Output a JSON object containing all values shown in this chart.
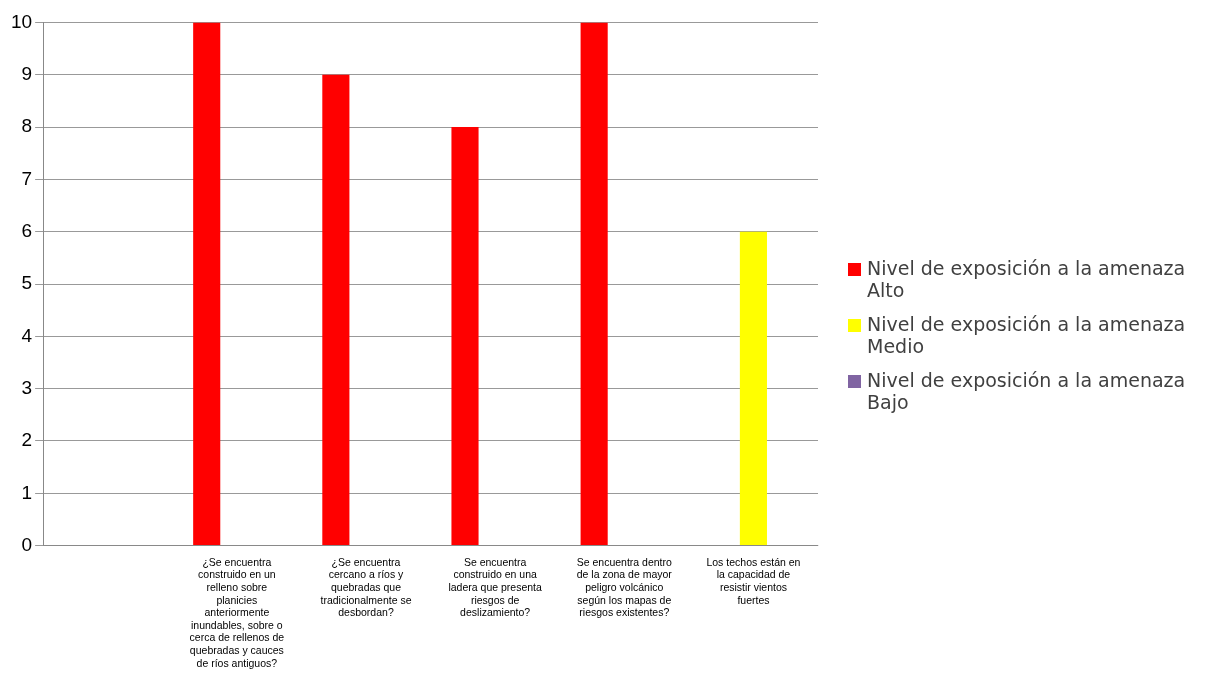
{
  "chart_data": {
    "type": "bar",
    "categories": [
      null,
      "¿Se encuentra construido en un relleno sobre planicies anteriormente inundables, sobre o cerca de rellenos de quebradas y cauces de ríos antiguos?",
      "¿Se encuentra cercano a ríos y quebradas que tradicionalmente se desbordan?",
      "Se encuentra construido en una ladera que presenta riesgos de deslizamiento?",
      "Se encuentra dentro de la zona de mayor peligro volcánico según los mapas de riesgos existentes?",
      "Los techos están en la capacidad de resistir vientos fuertes"
    ],
    "series": [
      {
        "name": "Nivel de exposición a la amenaza Alto",
        "color": "#ff0000",
        "values": [
          null,
          10,
          9,
          8,
          10,
          null
        ]
      },
      {
        "name": "Nivel de exposición a la amenaza Medio",
        "color": "#ffff00",
        "values": [
          null,
          null,
          null,
          null,
          null,
          6
        ]
      },
      {
        "name": "Nivel de exposición a la amenaza Bajo",
        "color": "#8064a2",
        "values": [
          null,
          null,
          null,
          null,
          null,
          null
        ]
      }
    ],
    "ylim": [
      0,
      10
    ],
    "yticks": [
      0,
      1,
      2,
      3,
      4,
      5,
      6,
      7,
      8,
      9,
      10
    ],
    "grid": "y",
    "legend": "right"
  }
}
